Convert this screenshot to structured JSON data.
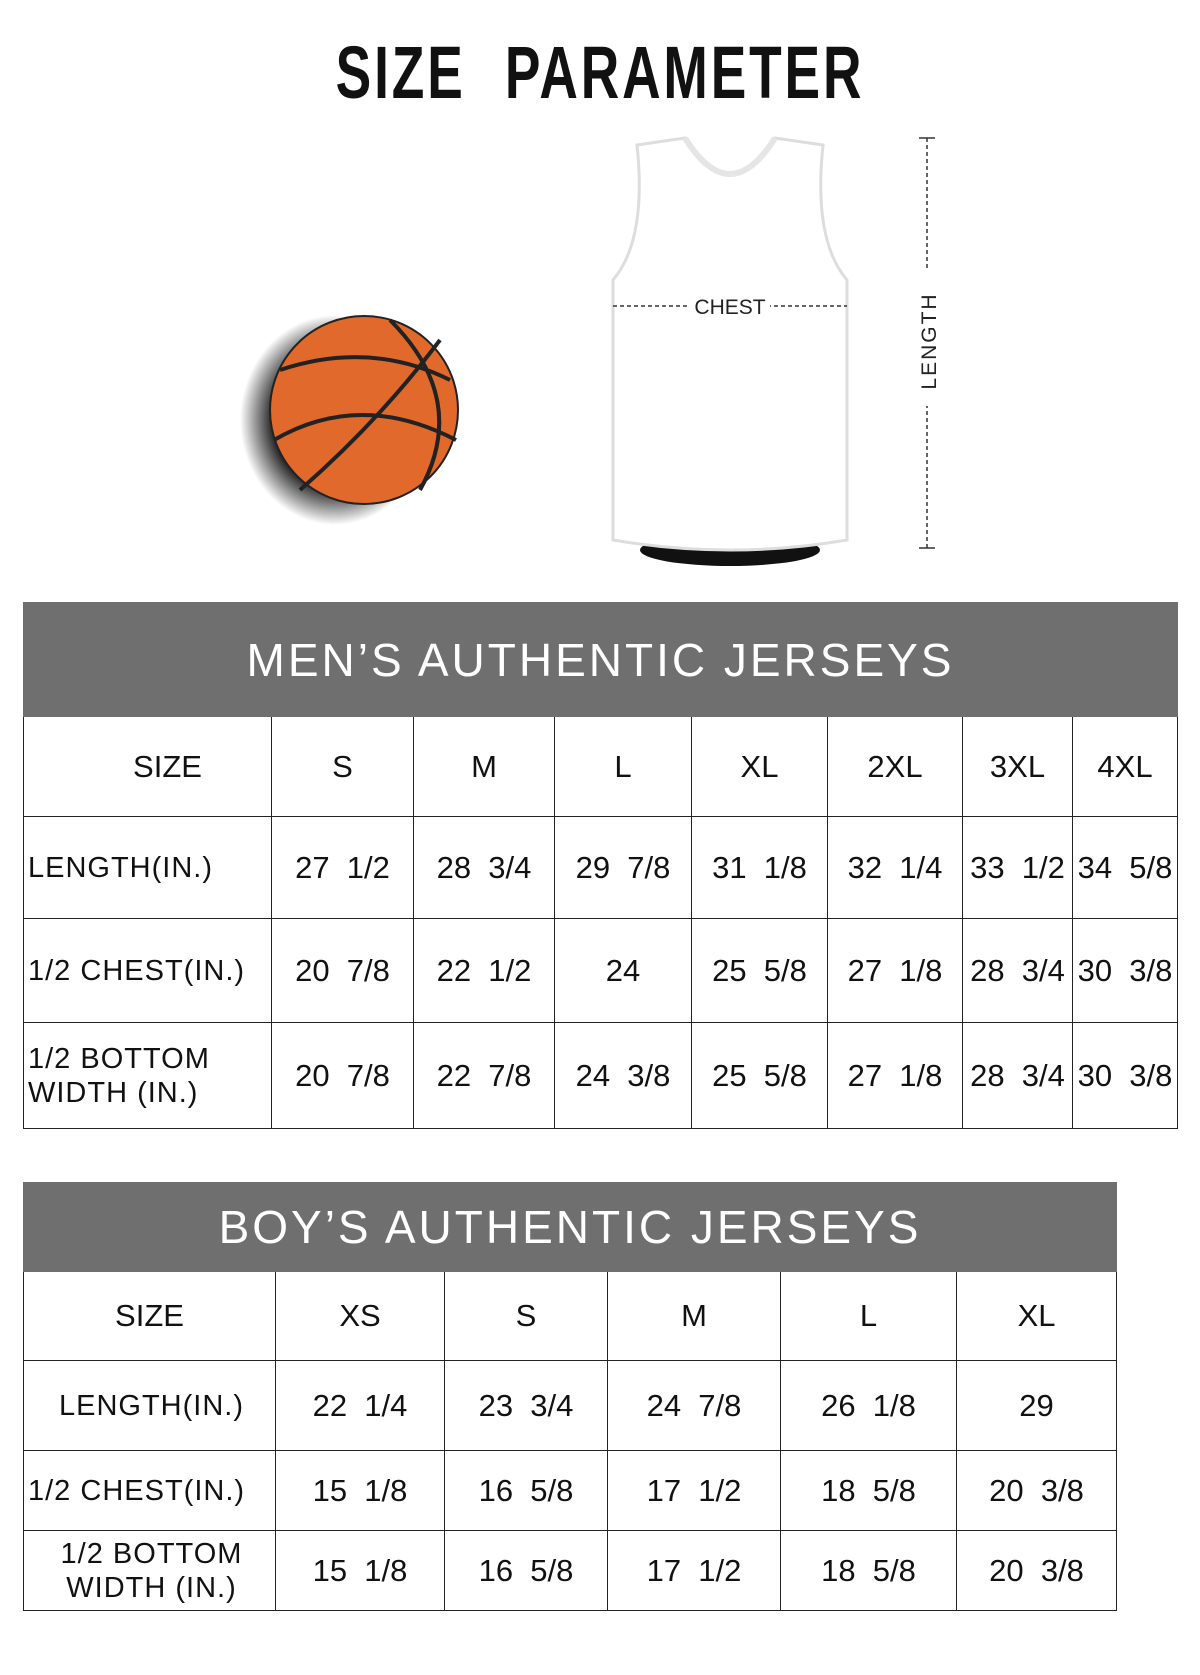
{
  "title": "SIZE PARAMETER",
  "illustration": {
    "chest_label": "CHEST",
    "length_label": "LENGTH",
    "ball_color": "#e0692b"
  },
  "colors": {
    "header_bg": "#6f6f6f",
    "header_text": "#ffffff"
  },
  "mens": {
    "title": "MEN’S AUTHENTIC JERSEYS",
    "header": [
      "SIZE",
      "S",
      "M",
      "L",
      "XL",
      "2XL",
      "3XL",
      "4XL"
    ],
    "rows": [
      {
        "label": "LENGTH(IN.)",
        "values": [
          "27  1/2",
          "28  3/4",
          "29  7/8",
          "31  1/8",
          "32  1/4",
          "33  1/2",
          "34  5/8"
        ]
      },
      {
        "label": "1/2 CHEST(IN.)",
        "values": [
          "20  7/8",
          "22  1/2",
          "24",
          "25  5/8",
          "27  1/8",
          "28  3/4",
          "30  3/8"
        ]
      },
      {
        "label": "1/2 BOTTOM WIDTH  (IN.)",
        "values": [
          "20  7/8",
          "22  7/8",
          "24  3/8",
          "25  5/8",
          "27  1/8",
          "28  3/4",
          "30  3/8"
        ]
      }
    ]
  },
  "boys": {
    "title": "BOY’S AUTHENTIC JERSEYS",
    "header": [
      "SIZE",
      "XS",
      "S",
      "M",
      "L",
      "XL"
    ],
    "rows": [
      {
        "label": "LENGTH(IN.)",
        "values": [
          "22  1/4",
          "23  3/4",
          "24  7/8",
          "26  1/8",
          "29"
        ]
      },
      {
        "label": "1/2 CHEST(IN.)",
        "values": [
          "15  1/8",
          "16  5/8",
          "17  1/2",
          "18  5/8",
          "20  3/8"
        ]
      },
      {
        "label": "1/2 BOTTOM WIDTH  (IN.)",
        "values": [
          "15  1/8",
          "16  5/8",
          "17  1/2",
          "18  5/8",
          "20  3/8"
        ]
      }
    ]
  }
}
